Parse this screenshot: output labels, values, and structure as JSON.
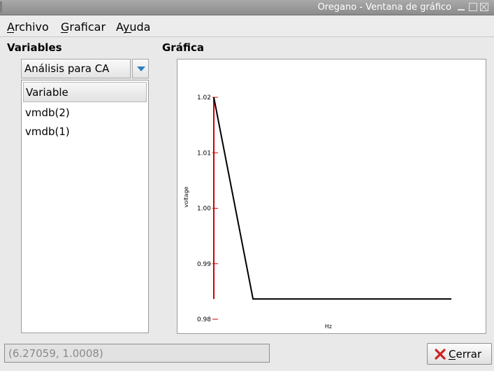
{
  "window": {
    "title": "Oregano - Ventana de gráfico"
  },
  "menubar": {
    "items": [
      {
        "label": "Archivo"
      },
      {
        "label": "Graficar"
      },
      {
        "label": "Ayuda"
      }
    ]
  },
  "variables_panel": {
    "heading": "Variables",
    "analysis_select": {
      "selected": "Análisis para CA"
    },
    "list": {
      "column_header": "Variable",
      "rows": [
        "vmdb(2)",
        "vmdb(1)"
      ]
    }
  },
  "graph_panel": {
    "heading": "Gráfica"
  },
  "chart_data": {
    "type": "line",
    "ylabel": "voltage",
    "xlabel": "Hz",
    "y_tick_labels": [
      "1.02",
      "1.01",
      "1.00",
      "0.99",
      "0.98"
    ],
    "ylim": [
      0.98,
      1.02
    ],
    "series": [
      {
        "color": "#000000",
        "x": [
          0.0,
          0.165,
          1.0
        ],
        "y": [
          1.02,
          0.98365,
          0.98365
        ]
      }
    ],
    "cursor": {
      "color": "#cc0000",
      "x": 0.0,
      "y_range": [
        0.98365,
        1.02
      ]
    },
    "grid": false,
    "tick_color": "#cc0000"
  },
  "status": {
    "coordinates": "(6.27059, 1.0008)"
  },
  "buttons": {
    "close_label": "Cerrar",
    "close_icon": "close-icon",
    "close_icon_color": "#cc2222"
  }
}
